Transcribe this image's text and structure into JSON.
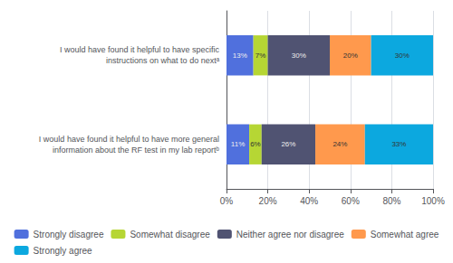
{
  "chart_data": {
    "type": "bar",
    "orientation": "horizontal",
    "stacked": true,
    "categories": [
      "I would have found it helpful to have specific\ninstructions on what to do nextᵃ",
      "I would have found it helpful to have more general\ninformation about the RF test in my lab reportᵇ"
    ],
    "series": [
      {
        "name": "Strongly disagree",
        "values": [
          13,
          11
        ],
        "value_labels": [
          "13%",
          "11%"
        ]
      },
      {
        "name": "Somewhat disagree",
        "values": [
          7,
          6
        ],
        "value_labels": [
          "7%",
          "6%"
        ]
      },
      {
        "name": "Neither agree nor disagree",
        "values": [
          30,
          26
        ],
        "value_labels": [
          "30%",
          "26%"
        ]
      },
      {
        "name": "Somewhat agree",
        "values": [
          20,
          24
        ],
        "value_labels": [
          "20%",
          "24%"
        ]
      },
      {
        "name": "Strongly agree",
        "values": [
          30,
          33
        ],
        "value_labels": [
          "30%",
          "33%"
        ]
      }
    ],
    "xlim": [
      0,
      100
    ],
    "xticks": [
      {
        "value": 0,
        "label": "0%"
      },
      {
        "value": 20,
        "label": "20%"
      },
      {
        "value": 40,
        "label": "40%"
      },
      {
        "value": 60,
        "label": "60%"
      },
      {
        "value": 80,
        "label": "80%"
      },
      {
        "value": 100,
        "label": "100%"
      }
    ],
    "grid": true,
    "data_labels": true,
    "legend": "bottom"
  }
}
